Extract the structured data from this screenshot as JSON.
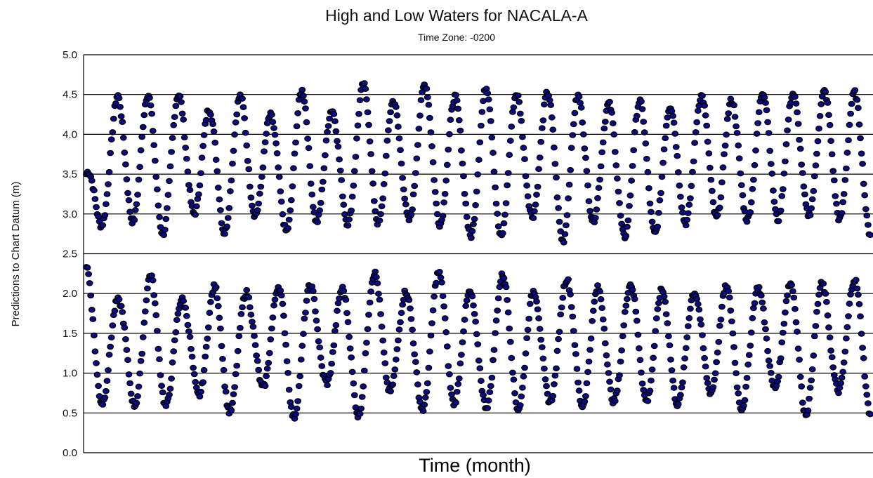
{
  "chart_data": {
    "type": "scatter",
    "title": "High and Low Waters for NACALA-A",
    "subtitle": "Time Zone: -0200",
    "xlabel": "Time (month)",
    "ylabel": "Predictions to Chart Datum (m)",
    "ylim": [
      0,
      5
    ],
    "yticks": [
      "0.0",
      "0.5",
      "1.0",
      "1.5",
      "2.0",
      "2.5",
      "3.0",
      "3.5",
      "4.0",
      "4.5",
      "5.0"
    ],
    "grid": true,
    "marker_color": "#0a0a8f",
    "series": [
      {
        "high_water_peaks": [
          3.5,
          4.5,
          4.5,
          4.5,
          4.3,
          4.5,
          4.2,
          4.6,
          4.25,
          4.7,
          4.35,
          4.7,
          4.4,
          4.65,
          4.45,
          4.55,
          4.45,
          4.35,
          4.45,
          4.3,
          4.6,
          4.3,
          4.7,
          4.35,
          4.7,
          4.35
        ],
        "high_water_troughs": [
          2.7,
          3.05,
          2.65,
          3.05,
          2.75,
          3.0,
          2.75,
          2.95,
          2.85,
          2.9,
          2.95,
          2.75,
          2.65,
          3.0,
          2.65,
          2.95,
          2.65,
          2.8,
          2.95,
          2.95,
          2.9,
          3.0,
          2.95,
          2.75
        ],
        "low_water_peaks": [
          2.35,
          1.9,
          2.25,
          1.9,
          2.1,
          2.0,
          2.1,
          2.1,
          2.05,
          2.3,
          1.95,
          2.35,
          1.9,
          2.35,
          1.9,
          2.3,
          1.95,
          2.2,
          1.95,
          2.05,
          2.1,
          2.05,
          2.2,
          2.05,
          2.3
        ],
        "low_water_troughs": [
          0.55,
          0.7,
          0.45,
          0.85,
          0.4,
          0.9,
          0.4,
          0.9,
          0.45,
          0.8,
          0.5,
          0.65,
          0.55,
          0.55,
          0.7,
          0.5,
          0.8,
          0.45,
          0.9,
          0.45,
          0.9,
          0.45,
          0.8,
          0.5
        ]
      }
    ]
  }
}
